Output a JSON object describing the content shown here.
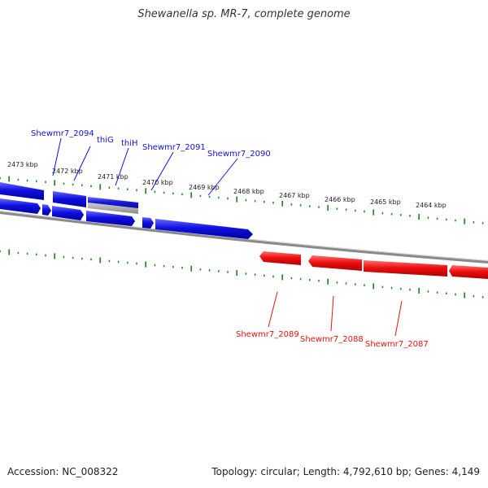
{
  "title": "Shewanella sp. MR-7, complete genome",
  "footer": {
    "accession": "Accession: NC_008322",
    "topology": "Topology: circular; Length: 4,792,610 bp; Genes: 4,149"
  },
  "colors": {
    "forward": "#1010e0",
    "reverse": "#ee1111",
    "tick": "#2a8a2a",
    "backbone": "#8a8a8a",
    "highlight": "#bdbdbd"
  },
  "kbp_ticks": [
    "2473 kbp",
    "2472 kbp",
    "2471 kbp",
    "2470 kbp",
    "2469 kbp",
    "2468 kbp",
    "2467 kbp",
    "2466 kbp",
    "2465 kbp",
    "2464 kbp"
  ],
  "gene_labels": {
    "forward": [
      "Shewmr7_2094",
      "thiG",
      "thiH",
      "Shewmr7_2091",
      "Shewmr7_2090"
    ],
    "reverse": [
      "Shewmr7_2089",
      "Shewmr7_2088",
      "Shewmr7_2087"
    ]
  }
}
